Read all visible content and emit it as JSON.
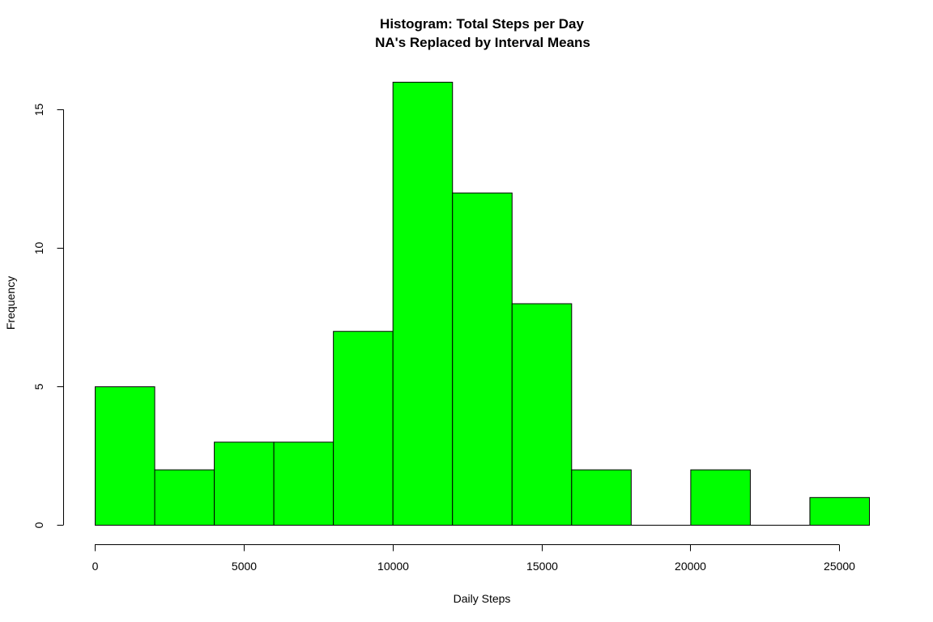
{
  "chart_data": {
    "type": "bar",
    "title": "Histogram: Total Steps per Day",
    "subtitle": "NA's Replaced by Interval Means",
    "xlabel": "Daily Steps",
    "ylabel": "Frequency",
    "bin_edges": [
      0,
      2000,
      4000,
      6000,
      8000,
      10000,
      12000,
      14000,
      16000,
      18000,
      20000,
      22000,
      24000,
      26000
    ],
    "values": [
      5,
      2,
      3,
      3,
      7,
      16,
      12,
      8,
      2,
      0,
      2,
      0,
      1
    ],
    "xlim": [
      0,
      26000
    ],
    "ylim": [
      0,
      16
    ],
    "x_ticks": [
      0,
      5000,
      10000,
      15000,
      20000,
      25000
    ],
    "x_tick_labels": [
      "0",
      "5000",
      "10000",
      "15000",
      "20000",
      "25000"
    ],
    "y_ticks": [
      0,
      5,
      10,
      15
    ],
    "y_tick_labels": [
      "0",
      "5",
      "10",
      "15"
    ],
    "bar_color": "#00ff00",
    "bar_border_color": "#000000",
    "grid": false,
    "legend": "none"
  }
}
